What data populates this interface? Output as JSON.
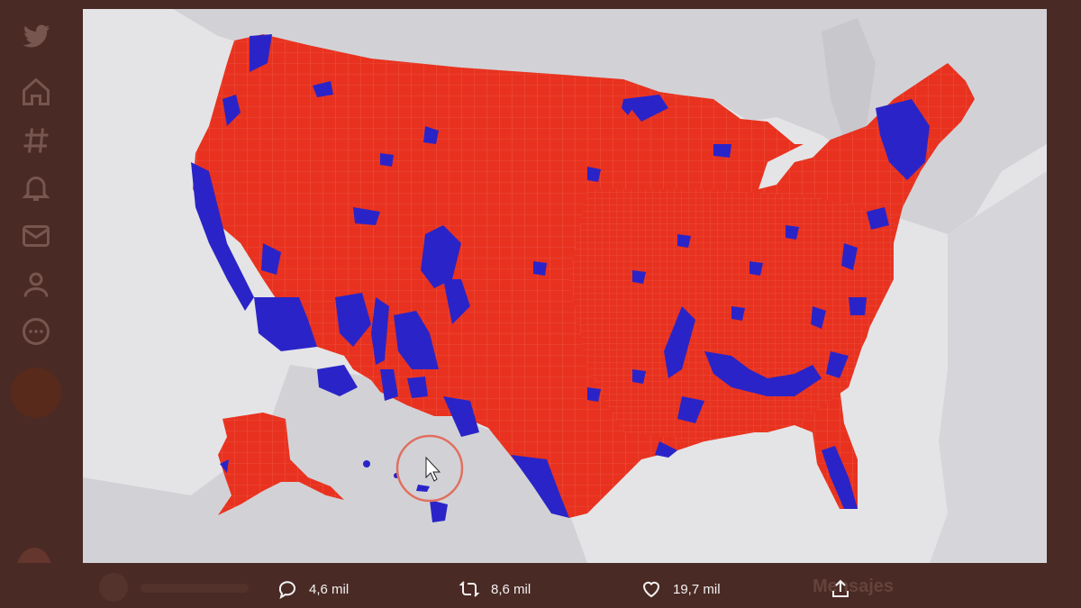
{
  "actions": {
    "replies": "4,6 mil",
    "retweets": "8,6 mil",
    "likes": "19,7 mil"
  },
  "ghost_label": "Mensajes",
  "sidebar": {
    "icons": [
      "twitter-icon",
      "home-icon",
      "hashtag-icon",
      "bell-icon",
      "mail-icon",
      "profile-icon",
      "more-icon",
      "compose-icon"
    ]
  },
  "map": {
    "republican_color": "#e8321f",
    "democrat_color": "#2a24c8",
    "land_color": "#c8c8cc",
    "water_color": "#e4e4e6",
    "cursor_ring_color": "#e07060"
  }
}
